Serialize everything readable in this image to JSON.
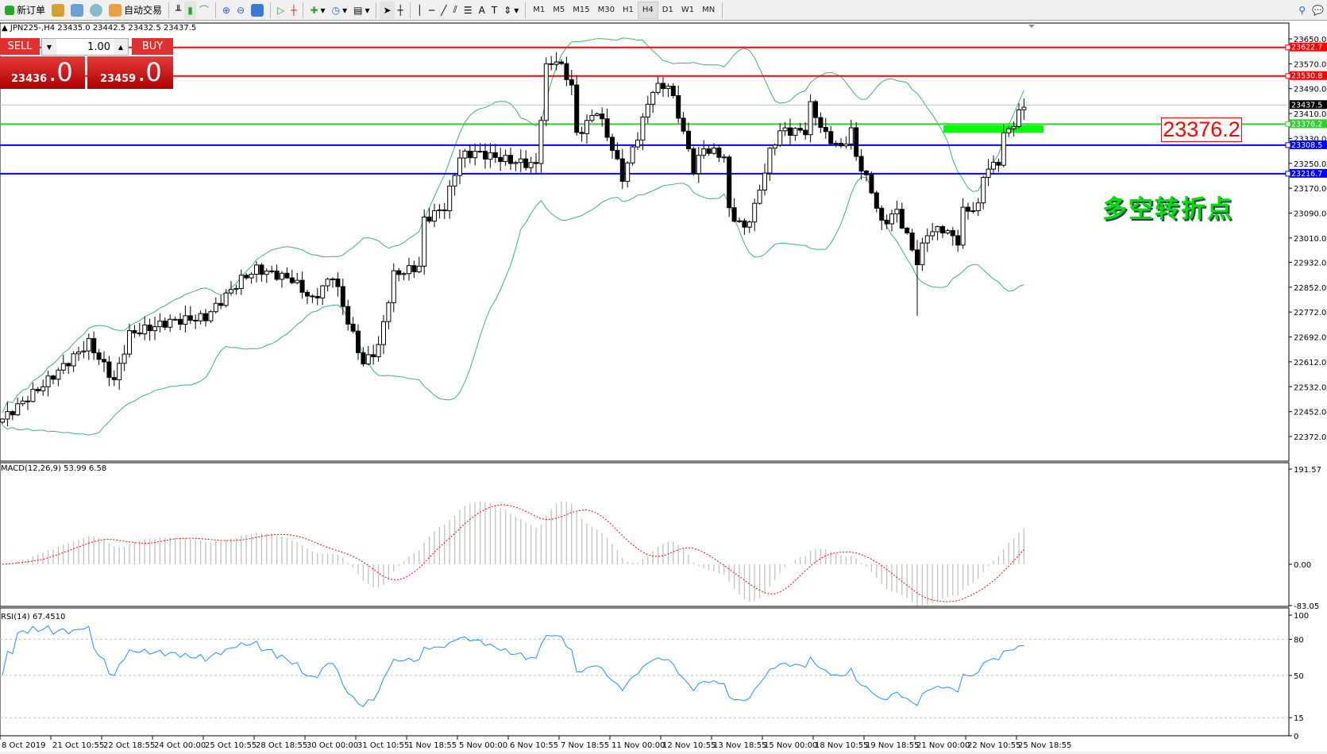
{
  "toolbar": {
    "new_order": "新订单",
    "auto_trading": "自动交易",
    "timeframes": [
      "M1",
      "M5",
      "M15",
      "M30",
      "H1",
      "H4",
      "D1",
      "W1",
      "MN"
    ],
    "active_timeframe": "H4"
  },
  "symbol_line": "JPN225-,H4  23435.0 23442.5 23432.5 23437.5",
  "trade_panel": {
    "sell_label": "SELL",
    "buy_label": "BUY",
    "volume": "1.00",
    "sell_price_main": "23436",
    "sell_price_frac": ".0",
    "buy_price_main": "23459",
    "buy_price_frac": ".0"
  },
  "annotation": {
    "price_box": "23376.2",
    "text": "多空转折点",
    "highlight_color": "#00ff00"
  },
  "chart_data": [
    {
      "type": "candlestick",
      "title": "JPN225-,H4",
      "y_ticks": [
        23650,
        23570,
        23490,
        23410,
        23330,
        23250,
        23170,
        23090,
        23010,
        22932,
        22852,
        22772,
        22692,
        22612,
        22532,
        22452,
        22372
      ],
      "ylim": [
        22372,
        23650
      ],
      "bar_count": 202,
      "close_keypoints": [
        [
          0,
          22428
        ],
        [
          8,
          22538
        ],
        [
          17,
          22673
        ],
        [
          22,
          22550
        ],
        [
          25,
          22701
        ],
        [
          33,
          22742
        ],
        [
          40,
          22755
        ],
        [
          47,
          22877
        ],
        [
          50,
          22910
        ],
        [
          57,
          22877
        ],
        [
          61,
          22810
        ],
        [
          65,
          22892
        ],
        [
          68,
          22742
        ],
        [
          71,
          22606
        ],
        [
          74,
          22660
        ],
        [
          77,
          22892
        ],
        [
          82,
          22918
        ],
        [
          83,
          23068
        ],
        [
          87,
          23109
        ],
        [
          90,
          23272
        ],
        [
          93,
          23285
        ],
        [
          100,
          23258
        ],
        [
          105,
          23244
        ],
        [
          107,
          23558
        ],
        [
          109,
          23584
        ],
        [
          112,
          23502
        ],
        [
          113,
          23339
        ],
        [
          117,
          23421
        ],
        [
          120,
          23298
        ],
        [
          122,
          23204
        ],
        [
          125,
          23339
        ],
        [
          128,
          23489
        ],
        [
          131,
          23502
        ],
        [
          133,
          23408
        ],
        [
          136,
          23231
        ],
        [
          138,
          23298
        ],
        [
          142,
          23272
        ],
        [
          143,
          23096
        ],
        [
          146,
          23040
        ],
        [
          148,
          23109
        ],
        [
          151,
          23285
        ],
        [
          153,
          23354
        ],
        [
          158,
          23354
        ],
        [
          159,
          23435
        ],
        [
          162,
          23339
        ],
        [
          165,
          23298
        ],
        [
          167,
          23354
        ],
        [
          168,
          23272
        ],
        [
          171,
          23163
        ],
        [
          173,
          23055
        ],
        [
          176,
          23096
        ],
        [
          180,
          22933
        ],
        [
          182,
          23027
        ],
        [
          185,
          23040
        ],
        [
          188,
          23000
        ],
        [
          189,
          23096
        ],
        [
          192,
          23109
        ],
        [
          193,
          23216
        ],
        [
          196,
          23258
        ],
        [
          197,
          23339
        ],
        [
          199,
          23380
        ],
        [
          201,
          23437
        ]
      ],
      "horizontal_lines": [
        {
          "price": "23622.7",
          "color": "#ff0000"
        },
        {
          "price": "23530.8",
          "color": "#ff0000"
        },
        {
          "price": "23437.5",
          "color": "#c0c0c0",
          "label_bg": "#000000"
        },
        {
          "price": "23376.2",
          "color": "#32cd32"
        },
        {
          "price": "23308.5",
          "color": "#0000ff"
        },
        {
          "price": "23216.7",
          "color": "#0000ff"
        }
      ],
      "indicator": "Bollinger Bands (20)",
      "band_color": "#3cb371"
    },
    {
      "type": "bar",
      "name": "MACD(12,26,9) 53.99 6.58",
      "ylim": [
        -83.05,
        191.57
      ],
      "y_ticks": [
        "191.57",
        "0.00",
        "-83.05"
      ],
      "histogram_color": "#c0c0c0",
      "signal_color": "#ff0000"
    },
    {
      "type": "line",
      "name": "RSI(14) 67.4510",
      "ylim": [
        0,
        100
      ],
      "y_ticks": [
        "100",
        "80",
        "50",
        "15",
        "0"
      ],
      "levels": [
        80,
        50,
        15
      ],
      "color": "#1e90ff"
    }
  ],
  "x_labels": [
    "8 Oct 2019",
    "21 Oct 10:55",
    "22 Oct 18:55",
    "24 Oct 00:00",
    "25 Oct 10:55",
    "28 Oct 18:55",
    "30 Oct 00:00",
    "31 Oct 10:55",
    "1 Nov 18:55",
    "5 Nov 00:00",
    "6 Nov 10:55",
    "7 Nov 18:55",
    "11 Nov 00:00",
    "12 Nov 10:55",
    "13 Nov 18:55",
    "15 Nov 00:00",
    "18 Nov 10:55",
    "19 Nov 18:55",
    "21 Nov 00:00",
    "22 Nov 10:55",
    "25 Nov 18:55"
  ]
}
